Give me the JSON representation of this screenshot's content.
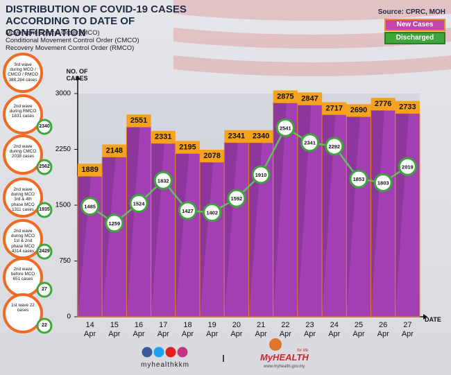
{
  "chart_data": {
    "type": "bar",
    "title": "DISTRIBUTION OF COVID-19 CASES ACCORDING TO DATE OF CONFIRMATION",
    "subtitle": [
      "Movement Control Order (MCO)",
      "Conditional Movement Control Order (CMCO)",
      "Recovery Movement Control Order (RMCO)"
    ],
    "source": "Source: CPRC, MOH",
    "y_label": "NO. OF CASES",
    "x_label": "DATE",
    "categories": [
      "14 Apr",
      "15 Apr",
      "16 Apr",
      "17 Apr",
      "18 Apr",
      "19 Apr",
      "20 Apr",
      "21 Apr",
      "22 Apr",
      "23 Apr",
      "24 Apr",
      "25 Apr",
      "26 Apr",
      "27 Apr"
    ],
    "series": [
      {
        "name": "New Cases",
        "color": "#a13fb3",
        "type": "bar",
        "values": [
          1889,
          2148,
          2551,
          2331,
          2195,
          2078,
          2341,
          2340,
          2875,
          2847,
          2717,
          2690,
          2776,
          2733
        ]
      },
      {
        "name": "Discharged",
        "color": "#3fa43c",
        "type": "line",
        "values": [
          1485,
          1259,
          1524,
          1832,
          1427,
          1402,
          1592,
          1910,
          2541,
          2341,
          2292,
          1853,
          1803,
          2019
        ]
      }
    ],
    "ylim": [
      0,
      3000
    ],
    "yticks": [
      0,
      750,
      1500,
      2250,
      3000
    ],
    "legend": "upper right"
  },
  "waves": [
    {
      "text": "3rd wave during MCO / CMCO / RMCO 388,284 cases"
    },
    {
      "text": "2nd wave during RMCO 1831 cases",
      "discharged": "2340"
    },
    {
      "text": "2nd wave during CMCO 2038 cases",
      "discharged": "2562"
    },
    {
      "text": "2nd wave during MCO 3rd & 4th phase MCO 1311 cases",
      "discharged": "1935"
    },
    {
      "text": "2nd wave during MCO 1st & 2nd phase MCO 4314 cases",
      "discharged": "2429"
    },
    {
      "text": "2nd wave before MCO 651 cases",
      "discharged": "27"
    },
    {
      "text": "1st wave 22 cases",
      "discharged": "22"
    }
  ],
  "footer": {
    "handle": "myhealthkkm",
    "brand": "MyHEALTH",
    "tagline": "for life",
    "url": "www.myhealth.gov.my"
  }
}
